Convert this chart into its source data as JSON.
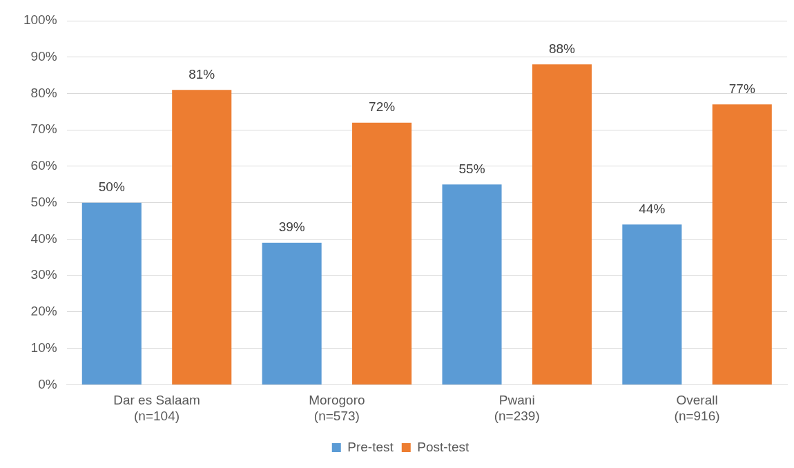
{
  "chart_data": {
    "type": "bar",
    "categories": [
      "Dar es Salaam\n(n=104)",
      "Morogoro\n(n=573)",
      "Pwani\n(n=239)",
      "Overall\n(n=916)"
    ],
    "series": [
      {
        "name": "Pre-test",
        "color": "#5b9bd5",
        "values": [
          50,
          39,
          55,
          44
        ],
        "value_labels": [
          "50%",
          "39%",
          "55%",
          "44%"
        ]
      },
      {
        "name": "Post-test",
        "color": "#ed7d31",
        "values": [
          81,
          72,
          88,
          77
        ],
        "value_labels": [
          "81%",
          "72%",
          "88%",
          "77%"
        ]
      }
    ],
    "ylim": [
      0,
      100
    ],
    "yticks": [
      {
        "value": 0,
        "label": "0%"
      },
      {
        "value": 10,
        "label": "10%"
      },
      {
        "value": 20,
        "label": "20%"
      },
      {
        "value": 30,
        "label": "30%"
      },
      {
        "value": 40,
        "label": "40%"
      },
      {
        "value": 50,
        "label": "50%"
      },
      {
        "value": 60,
        "label": "60%"
      },
      {
        "value": 70,
        "label": "70%"
      },
      {
        "value": 80,
        "label": "80%"
      },
      {
        "value": 90,
        "label": "90%"
      },
      {
        "value": 100,
        "label": "100%"
      }
    ],
    "grid": "y",
    "legend": "bottom"
  }
}
